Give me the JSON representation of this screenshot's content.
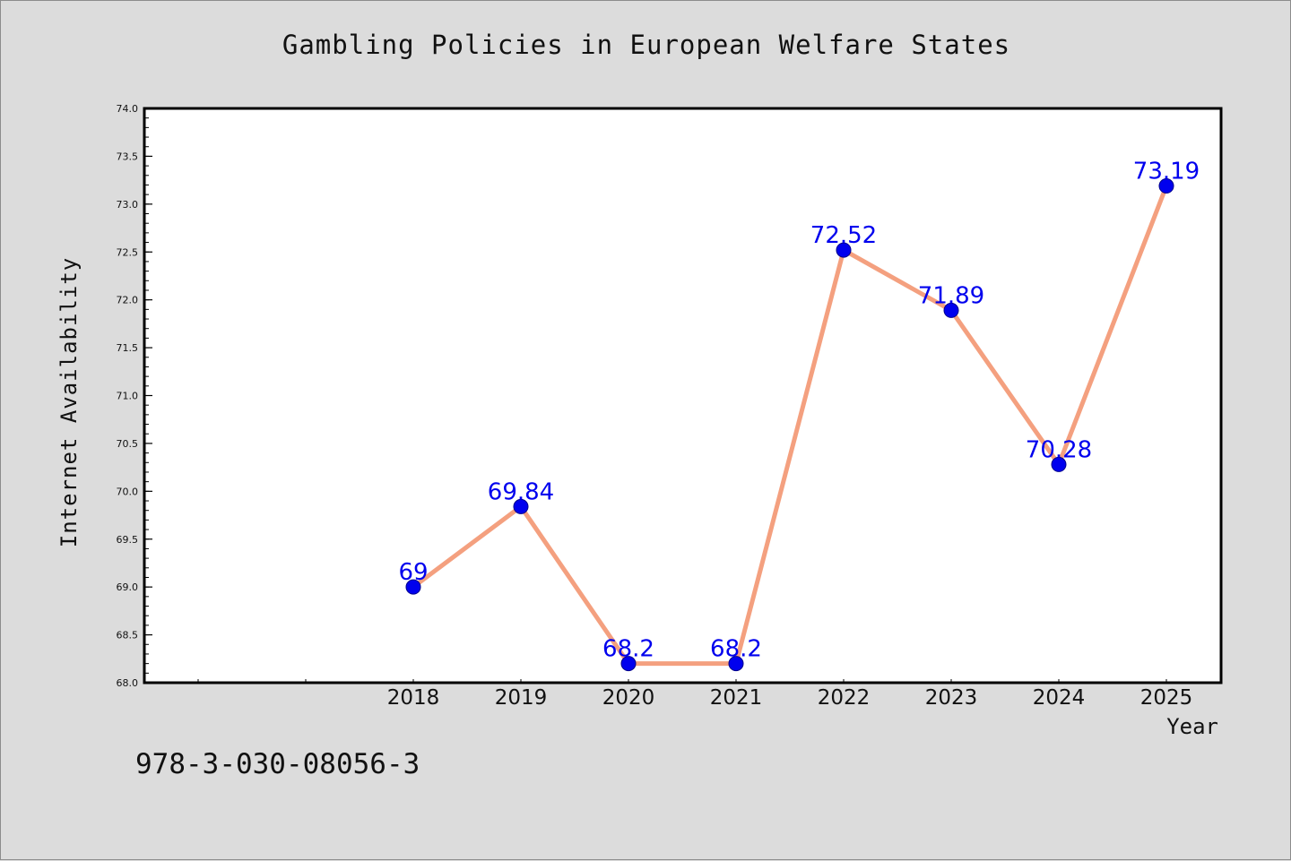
{
  "chart_data": {
    "type": "line",
    "title": "Gambling Policies in European Welfare States",
    "xlabel": "Year",
    "ylabel": "Internet Availability",
    "x": [
      "2018",
      "2019",
      "2020",
      "2021",
      "2022",
      "2023",
      "2024",
      "2025"
    ],
    "x_extra_slots_before": 2,
    "series": [
      {
        "values": [
          69,
          69.84,
          68.2,
          68.2,
          72.52,
          71.89,
          70.28,
          73.19
        ],
        "labels": [
          "69",
          "69.84",
          "68.2",
          "68.2",
          "72.52",
          "71.89",
          "70.28",
          "73.19"
        ]
      }
    ],
    "ylim": [
      68.0,
      74.0
    ],
    "yticks": [
      "68.0",
      "68.5",
      "69.0",
      "69.5",
      "70.0",
      "70.5",
      "71.0",
      "71.5",
      "72.0",
      "72.5",
      "73.0",
      "73.5",
      "74.0"
    ],
    "grid": false,
    "line_color": "#f4a07f",
    "marker_color": "#0000ee",
    "label_color": "#0000ee"
  },
  "footer": {
    "isbn": "978-3-030-08056-3"
  }
}
